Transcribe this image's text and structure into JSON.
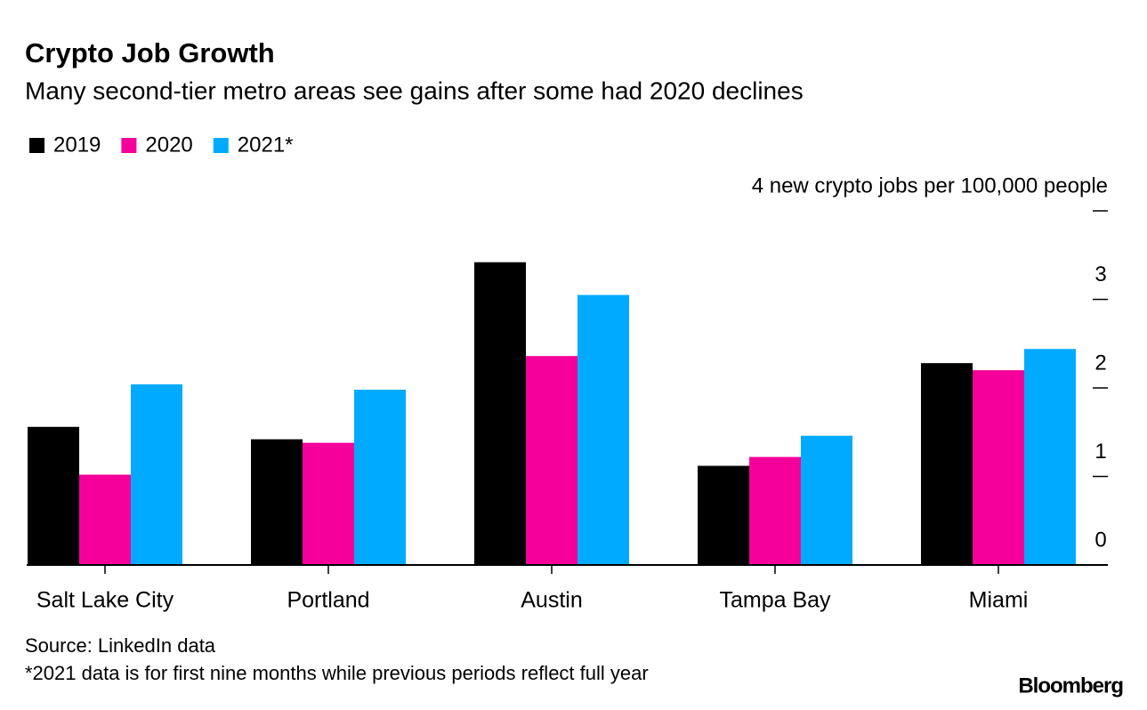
{
  "chart_data": {
    "type": "bar",
    "title": "Crypto Job Growth",
    "subtitle": "Many second-tier metro areas see gains after some had 2020 declines",
    "categories": [
      "Salt Lake City",
      "Portland",
      "Austin",
      "Tampa Bay",
      "Miami"
    ],
    "series": [
      {
        "name": "2019",
        "color": "#000000",
        "values": [
          1.56,
          1.42,
          3.42,
          1.12,
          2.28
        ]
      },
      {
        "name": "2020",
        "color": "#f5009b",
        "values": [
          1.02,
          1.38,
          2.36,
          1.22,
          2.2
        ]
      },
      {
        "name": "2021*",
        "color": "#00aaff",
        "values": [
          2.04,
          1.98,
          3.05,
          1.46,
          2.44
        ]
      }
    ],
    "ylim": [
      0,
      4
    ],
    "yticks": [
      0,
      1,
      2,
      3,
      {
        "value": 4,
        "label": "4 new crypto jobs per 100,000 people"
      }
    ],
    "source": "Source: LinkedIn data",
    "note": "*2021 data is for first nine months while previous periods reflect full year",
    "brand": "Bloomberg"
  }
}
